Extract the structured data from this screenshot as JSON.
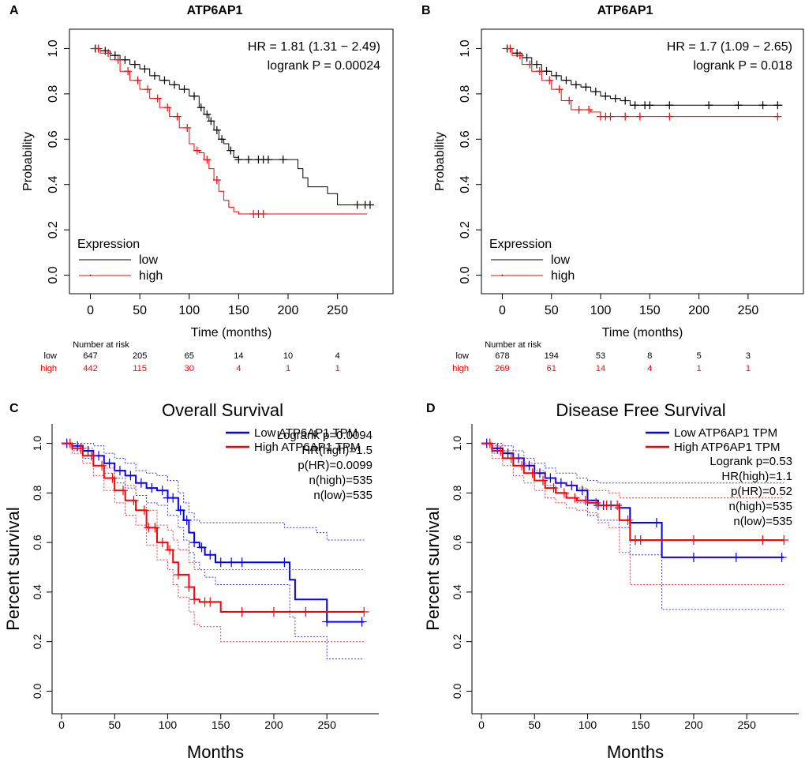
{
  "chart_data": [
    {
      "panel_label": "A",
      "type": "line",
      "title": "ATP6AP1",
      "xlabel": "Time (months)",
      "ylabel": "Probability",
      "xticks": [
        "0",
        "50",
        "100",
        "150",
        "200",
        "250"
      ],
      "yticks": [
        "0.0",
        "0.2",
        "0.4",
        "0.6",
        "0.8",
        "1.0"
      ],
      "xlim": [
        -10,
        295
      ],
      "ylim": [
        -0.04,
        1.04
      ],
      "stats": [
        "HR = 1.81 (1.31 − 2.49)",
        "logrank P = 0.00024"
      ],
      "legend_title": "Expression",
      "series": [
        {
          "name": "low",
          "color": "#000000",
          "x": [
            0,
            10,
            20,
            30,
            40,
            50,
            60,
            70,
            80,
            90,
            100,
            110,
            115,
            120,
            125,
            130,
            135,
            140,
            145,
            150,
            160,
            170,
            180,
            190,
            200,
            210,
            215,
            220,
            230,
            240,
            250,
            260,
            270,
            280,
            285
          ],
          "y": [
            1.0,
            0.99,
            0.97,
            0.95,
            0.93,
            0.91,
            0.88,
            0.86,
            0.84,
            0.82,
            0.79,
            0.74,
            0.71,
            0.68,
            0.64,
            0.6,
            0.58,
            0.55,
            0.52,
            0.51,
            0.51,
            0.51,
            0.51,
            0.51,
            0.51,
            0.47,
            0.43,
            0.39,
            0.39,
            0.36,
            0.31,
            0.31,
            0.31,
            0.31,
            0.31
          ],
          "censor": [
            5,
            15,
            25,
            35,
            45,
            55,
            65,
            75,
            85,
            95,
            105,
            112,
            118,
            122,
            128,
            133,
            142,
            150,
            160,
            170,
            175,
            180,
            195,
            270,
            278,
            283
          ]
        },
        {
          "name": "high",
          "color": "#ff0000",
          "x": [
            0,
            10,
            20,
            30,
            40,
            50,
            60,
            70,
            80,
            90,
            100,
            105,
            110,
            115,
            120,
            125,
            130,
            135,
            140,
            145,
            150,
            160,
            170,
            180,
            200,
            250,
            280
          ],
          "y": [
            1.0,
            0.98,
            0.95,
            0.9,
            0.86,
            0.82,
            0.78,
            0.74,
            0.7,
            0.65,
            0.58,
            0.55,
            0.54,
            0.51,
            0.47,
            0.42,
            0.37,
            0.33,
            0.3,
            0.28,
            0.27,
            0.27,
            0.27,
            0.27,
            0.27,
            0.27,
            0.27
          ],
          "censor": [
            8,
            18,
            28,
            38,
            48,
            58,
            68,
            78,
            88,
            98,
            108,
            118,
            128,
            165,
            170,
            175
          ]
        }
      ],
      "risk_table": {
        "title": "Number at risk",
        "times": [
          0,
          50,
          100,
          150,
          200,
          250
        ],
        "rows": [
          {
            "name": "low",
            "values": [
              "647",
              "205",
              "65",
              "14",
              "10",
              "4"
            ]
          },
          {
            "name": "high",
            "values": [
              "442",
              "115",
              "30",
              "4",
              "1",
              "1"
            ]
          }
        ]
      }
    },
    {
      "panel_label": "B",
      "type": "line",
      "title": "ATP6AP1",
      "xlabel": "Time (months)",
      "ylabel": "Probability",
      "xticks": [
        "0",
        "50",
        "100",
        "150",
        "200",
        "250"
      ],
      "yticks": [
        "0.0",
        "0.2",
        "0.4",
        "0.6",
        "0.8",
        "1.0"
      ],
      "xlim": [
        -10,
        295
      ],
      "ylim": [
        -0.04,
        1.04
      ],
      "stats": [
        "HR = 1.7 (1.09 − 2.65)",
        "logrank P = 0.018"
      ],
      "legend_title": "Expression",
      "series": [
        {
          "name": "low",
          "color": "#000000",
          "x": [
            0,
            10,
            20,
            30,
            40,
            50,
            60,
            70,
            80,
            90,
            100,
            110,
            120,
            130,
            140,
            150,
            200,
            250,
            285
          ],
          "y": [
            1.0,
            0.98,
            0.96,
            0.93,
            0.9,
            0.88,
            0.86,
            0.84,
            0.83,
            0.81,
            0.79,
            0.78,
            0.77,
            0.75,
            0.75,
            0.75,
            0.75,
            0.75,
            0.75
          ],
          "censor": [
            5,
            15,
            25,
            35,
            45,
            55,
            65,
            75,
            85,
            95,
            105,
            115,
            125,
            135,
            145,
            150,
            170,
            210,
            240,
            265,
            280
          ]
        },
        {
          "name": "high",
          "color": "#ff0000",
          "x": [
            0,
            10,
            20,
            30,
            40,
            50,
            60,
            70,
            80,
            90,
            100,
            150,
            200,
            250,
            280
          ],
          "y": [
            1.0,
            0.97,
            0.93,
            0.9,
            0.86,
            0.82,
            0.77,
            0.73,
            0.73,
            0.72,
            0.7,
            0.7,
            0.7,
            0.7,
            0.7
          ],
          "censor": [
            8,
            18,
            28,
            38,
            48,
            58,
            68,
            78,
            88,
            100,
            105,
            110,
            125,
            140,
            170,
            280
          ]
        }
      ],
      "risk_table": {
        "title": "Number at risk",
        "times": [
          0,
          50,
          100,
          150,
          200,
          250
        ],
        "rows": [
          {
            "name": "low",
            "values": [
              "678",
              "194",
              "53",
              "8",
              "5",
              "3"
            ]
          },
          {
            "name": "high",
            "values": [
              "269",
              "61",
              "14",
              "4",
              "1",
              "1"
            ]
          }
        ]
      }
    },
    {
      "panel_label": "C",
      "type": "line",
      "title": "Overall Survival",
      "xlabel": "Months",
      "ylabel": "Percent survival",
      "xticks": [
        "0",
        "50",
        "100",
        "150",
        "200",
        "250"
      ],
      "yticks": [
        "0.0",
        "0.2",
        "0.4",
        "0.6",
        "0.8",
        "1.0"
      ],
      "xlim": [
        0,
        290
      ],
      "ylim": [
        -0.04,
        1.04
      ],
      "legend": [
        "Low ATP6AP1 TPM",
        "High ATP6AP1 TPM"
      ],
      "stats": [
        "Logrank p=0.0094",
        "HR(high)=1.5",
        "p(HR)=0.0099",
        "n(high)=535",
        "n(low)=535"
      ],
      "series": [
        {
          "name": "Low ATP6AP1 TPM",
          "color": "#0000ff",
          "x": [
            0,
            10,
            20,
            30,
            40,
            50,
            60,
            70,
            80,
            90,
            100,
            110,
            115,
            120,
            125,
            130,
            135,
            140,
            145,
            150,
            160,
            170,
            180,
            190,
            200,
            210,
            215,
            220,
            230,
            240,
            250,
            260,
            270,
            285
          ],
          "y": [
            1.0,
            0.99,
            0.97,
            0.95,
            0.92,
            0.89,
            0.87,
            0.84,
            0.82,
            0.81,
            0.78,
            0.73,
            0.69,
            0.64,
            0.6,
            0.58,
            0.55,
            0.55,
            0.52,
            0.52,
            0.52,
            0.52,
            0.52,
            0.52,
            0.52,
            0.52,
            0.45,
            0.37,
            0.37,
            0.37,
            0.28,
            0.28,
            0.28,
            0.28
          ],
          "lower": [
            1.0,
            0.97,
            0.94,
            0.91,
            0.88,
            0.84,
            0.82,
            0.79,
            0.76,
            0.75,
            0.71,
            0.66,
            0.61,
            0.56,
            0.52,
            0.49,
            0.46,
            0.46,
            0.43,
            0.43,
            0.43,
            0.43,
            0.43,
            0.43,
            0.43,
            0.43,
            0.3,
            0.22,
            0.22,
            0.22,
            0.13,
            0.13,
            0.13,
            0.13
          ],
          "upper": [
            1.0,
            1.0,
            1.0,
            0.99,
            0.96,
            0.94,
            0.92,
            0.89,
            0.88,
            0.87,
            0.85,
            0.8,
            0.76,
            0.72,
            0.69,
            0.68,
            0.68,
            0.68,
            0.68,
            0.68,
            0.68,
            0.68,
            0.68,
            0.68,
            0.68,
            0.66,
            0.66,
            0.66,
            0.66,
            0.64,
            0.61,
            0.61,
            0.61,
            0.61
          ],
          "censor": [
            5,
            15,
            25,
            35,
            45,
            55,
            65,
            75,
            85,
            95,
            100,
            105,
            112,
            118,
            125,
            132,
            140,
            150,
            160,
            170,
            210,
            250,
            283
          ]
        },
        {
          "name": "High ATP6AP1 TPM",
          "color": "#ff0000",
          "x": [
            0,
            10,
            20,
            30,
            40,
            50,
            60,
            70,
            80,
            90,
            100,
            105,
            110,
            115,
            120,
            125,
            130,
            135,
            140,
            150,
            200,
            250,
            285
          ],
          "y": [
            1.0,
            0.98,
            0.95,
            0.91,
            0.86,
            0.81,
            0.77,
            0.73,
            0.66,
            0.6,
            0.57,
            0.52,
            0.47,
            0.47,
            0.42,
            0.37,
            0.36,
            0.36,
            0.36,
            0.32,
            0.32,
            0.32,
            0.32
          ],
          "lower": [
            1.0,
            0.96,
            0.92,
            0.87,
            0.81,
            0.76,
            0.71,
            0.67,
            0.59,
            0.53,
            0.49,
            0.43,
            0.38,
            0.38,
            0.32,
            0.27,
            0.26,
            0.26,
            0.26,
            0.2,
            0.2,
            0.2,
            0.2
          ],
          "upper": [
            1.0,
            1.0,
            0.98,
            0.95,
            0.9,
            0.86,
            0.83,
            0.79,
            0.73,
            0.67,
            0.65,
            0.61,
            0.57,
            0.57,
            0.52,
            0.49,
            0.49,
            0.49,
            0.49,
            0.49,
            0.49,
            0.49,
            0.49
          ],
          "censor": [
            8,
            18,
            28,
            38,
            48,
            58,
            68,
            78,
            82,
            88,
            95,
            102,
            110,
            120,
            125,
            135,
            140,
            170,
            200,
            230,
            285
          ]
        }
      ]
    },
    {
      "panel_label": "D",
      "type": "line",
      "title": "Disease Free Survival",
      "xlabel": "Months",
      "ylabel": "Percent survival",
      "xticks": [
        "0",
        "50",
        "100",
        "150",
        "200",
        "250"
      ],
      "yticks": [
        "0.0",
        "0.2",
        "0.4",
        "0.6",
        "0.8",
        "1.0"
      ],
      "xlim": [
        0,
        290
      ],
      "ylim": [
        -0.04,
        1.04
      ],
      "legend": [
        "Low ATP6AP1 TPM",
        "High ATP6AP1 TPM"
      ],
      "stats": [
        "Logrank p=0.53",
        "HR(high)=1.1",
        "p(HR)=0.52",
        "n(high)=535",
        "n(low)=535"
      ],
      "series": [
        {
          "name": "Low ATP6AP1 TPM",
          "color": "#0000ff",
          "x": [
            0,
            10,
            20,
            30,
            40,
            50,
            60,
            70,
            80,
            90,
            100,
            110,
            120,
            130,
            140,
            150,
            160,
            170,
            200,
            250,
            285
          ],
          "y": [
            1.0,
            0.98,
            0.96,
            0.94,
            0.91,
            0.88,
            0.86,
            0.84,
            0.83,
            0.81,
            0.77,
            0.75,
            0.75,
            0.74,
            0.68,
            0.68,
            0.68,
            0.54,
            0.54,
            0.54,
            0.54
          ],
          "lower": [
            1.0,
            0.96,
            0.94,
            0.91,
            0.88,
            0.85,
            0.83,
            0.8,
            0.78,
            0.76,
            0.71,
            0.69,
            0.69,
            0.66,
            0.55,
            0.55,
            0.55,
            0.33,
            0.33,
            0.33,
            0.33
          ],
          "upper": [
            1.0,
            1.0,
            0.99,
            0.97,
            0.94,
            0.92,
            0.9,
            0.88,
            0.88,
            0.86,
            0.85,
            0.84,
            0.84,
            0.84,
            0.84,
            0.84,
            0.84,
            0.84,
            0.84,
            0.84,
            0.84
          ],
          "censor": [
            5,
            15,
            25,
            35,
            45,
            55,
            65,
            75,
            85,
            95,
            100,
            110,
            115,
            122,
            130,
            165,
            200,
            240,
            283
          ]
        },
        {
          "name": "High ATP6AP1 TPM",
          "color": "#ff0000",
          "x": [
            0,
            10,
            20,
            30,
            40,
            50,
            60,
            70,
            80,
            90,
            100,
            110,
            120,
            130,
            140,
            150,
            200,
            250,
            285
          ],
          "y": [
            1.0,
            0.97,
            0.94,
            0.91,
            0.88,
            0.85,
            0.82,
            0.8,
            0.78,
            0.77,
            0.76,
            0.75,
            0.75,
            0.69,
            0.61,
            0.61,
            0.61,
            0.61,
            0.61
          ],
          "lower": [
            1.0,
            0.94,
            0.91,
            0.87,
            0.84,
            0.81,
            0.78,
            0.76,
            0.74,
            0.73,
            0.72,
            0.68,
            0.66,
            0.56,
            0.43,
            0.43,
            0.43,
            0.43,
            0.43
          ],
          "upper": [
            1.0,
            0.99,
            0.97,
            0.94,
            0.92,
            0.89,
            0.86,
            0.84,
            0.83,
            0.82,
            0.81,
            0.81,
            0.8,
            0.78,
            0.78,
            0.78,
            0.78,
            0.78,
            0.78
          ],
          "censor": [
            8,
            18,
            28,
            38,
            48,
            58,
            68,
            78,
            88,
            98,
            108,
            118,
            128,
            138,
            145,
            150,
            200,
            265,
            285
          ]
        }
      ]
    }
  ]
}
